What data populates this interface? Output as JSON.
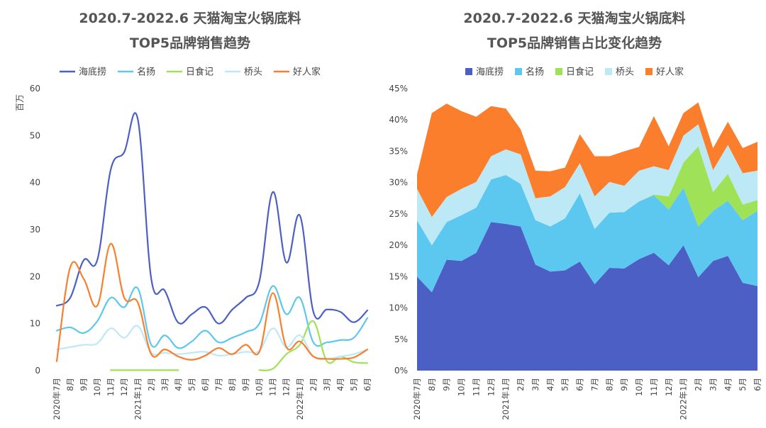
{
  "chart_data": [
    {
      "type": "line",
      "title_line1": "2020.7-2022.6 天猫淘宝火锅底料",
      "title_line2": "TOP5品牌销售趋势",
      "ylabel": "百万",
      "xlabel": "",
      "ylim": [
        0,
        60
      ],
      "yticks": [
        "0",
        "10",
        "20",
        "30",
        "40",
        "50",
        "60"
      ],
      "yticks_values": [
        0,
        10,
        20,
        30,
        40,
        50,
        60
      ],
      "legend_position": "top",
      "grid": false,
      "categories": [
        "2020年7月",
        "8月",
        "9月",
        "10月",
        "11月",
        "12月",
        "2021年1月",
        "2月",
        "3月",
        "4月",
        "5月",
        "6月",
        "7月",
        "8月",
        "9月",
        "10月",
        "11月",
        "12月",
        "2022年1月",
        "2月",
        "3月",
        "4月",
        "5月",
        "6月"
      ],
      "series": [
        {
          "name": "海底捞",
          "color": "#4c5fc4",
          "values": [
            13.8,
            15.5,
            23.5,
            23.5,
            42.8,
            46.5,
            53.5,
            19.5,
            17.0,
            10.2,
            12.0,
            13.5,
            10.0,
            13.0,
            15.5,
            19.0,
            38.0,
            23.0,
            33.0,
            12.5,
            13.0,
            12.5,
            10.3,
            12.8
          ]
        },
        {
          "name": "名扬",
          "color": "#5cc8ef",
          "values": [
            8.5,
            9.2,
            8.0,
            10.5,
            15.5,
            13.5,
            17.5,
            5.5,
            7.5,
            4.8,
            6.2,
            8.5,
            6.0,
            7.0,
            8.2,
            10.0,
            18.0,
            12.0,
            15.5,
            6.0,
            6.0,
            6.5,
            7.0,
            11.2
          ]
        },
        {
          "name": "日食记",
          "color": "#9fe257",
          "values": [
            null,
            null,
            null,
            null,
            0.1,
            0.1,
            0.1,
            0.1,
            0.1,
            0.1,
            null,
            null,
            null,
            null,
            null,
            0.1,
            0.4,
            3.5,
            5.5,
            10.5,
            2.0,
            3.0,
            1.8,
            1.6
          ]
        },
        {
          "name": "桥头",
          "color": "#bde9f6",
          "values": [
            4.5,
            5.0,
            5.5,
            5.8,
            9.0,
            7.0,
            9.5,
            3.8,
            3.8,
            3.5,
            3.8,
            4.0,
            3.2,
            3.5,
            4.0,
            4.2,
            9.0,
            5.0,
            7.5,
            3.0,
            2.5,
            3.0,
            3.5,
            4.5
          ]
        },
        {
          "name": "好人家",
          "color": "#fb7e2c",
          "values": [
            2.0,
            22.0,
            19.5,
            13.8,
            27.0,
            15.5,
            14.5,
            3.5,
            4.5,
            3.0,
            2.3,
            3.2,
            4.8,
            3.5,
            5.5,
            4.0,
            16.5,
            5.0,
            6.2,
            3.0,
            2.5,
            2.5,
            2.8,
            4.5
          ]
        }
      ]
    },
    {
      "type": "area",
      "stacked": true,
      "title_line1": "2020.7-2022.6 天猫淘宝火锅底料",
      "title_line2": "TOP5品牌销售占比变化趋势",
      "ylabel": "",
      "xlabel": "",
      "ylim": [
        0,
        45
      ],
      "yticks": [
        "0%",
        "5%",
        "10%",
        "15%",
        "20%",
        "25%",
        "30%",
        "35%",
        "40%",
        "45%"
      ],
      "yticks_values": [
        0,
        5,
        10,
        15,
        20,
        25,
        30,
        35,
        40,
        45
      ],
      "legend_position": "top",
      "grid": false,
      "categories": [
        "2020年7月",
        "8月",
        "9月",
        "10月",
        "11月",
        "12月",
        "2021年1月",
        "2月",
        "3月",
        "4月",
        "5月",
        "6月",
        "7月",
        "8月",
        "9月",
        "10月",
        "11月",
        "12月",
        "2022年1月",
        "2月",
        "3月",
        "4月",
        "5月",
        "6月"
      ],
      "series": [
        {
          "name": "海底捞",
          "color": "#4c5fc4",
          "values": [
            15.0,
            12.5,
            17.7,
            17.5,
            18.8,
            23.7,
            23.4,
            23.0,
            16.9,
            15.8,
            16.0,
            17.4,
            13.8,
            16.4,
            16.3,
            17.8,
            18.8,
            16.8,
            20.0,
            14.9,
            17.5,
            18.3,
            14.0,
            13.5
          ]
        },
        {
          "name": "名扬",
          "color": "#5cc8ef",
          "values": [
            9.0,
            7.5,
            6.0,
            7.3,
            7.2,
            6.8,
            7.8,
            6.8,
            7.1,
            7.2,
            8.3,
            10.9,
            8.8,
            8.8,
            9.0,
            9.2,
            9.2,
            8.9,
            9.2,
            8.1,
            8.0,
            8.8,
            10.0,
            12.0
          ]
        },
        {
          "name": "日食记",
          "color": "#9fe257",
          "values": [
            0,
            0,
            0,
            0,
            0,
            0,
            0,
            0,
            0,
            0,
            0,
            0,
            0,
            0,
            0,
            0,
            0.1,
            2.1,
            4.0,
            12.8,
            3.0,
            4.3,
            2.5,
            1.7
          ]
        },
        {
          "name": "桥头",
          "color": "#bde9f6",
          "values": [
            5.0,
            4.5,
            4.0,
            4.2,
            4.1,
            3.7,
            4.1,
            4.7,
            3.5,
            4.8,
            5.0,
            4.8,
            5.2,
            4.9,
            4.2,
            4.9,
            4.5,
            4.2,
            4.3,
            3.5,
            3.5,
            4.6,
            5.0,
            4.7
          ]
        },
        {
          "name": "好人家",
          "color": "#fb7e2c",
          "values": [
            2.3,
            16.6,
            14.9,
            12.4,
            10.4,
            8.0,
            6.5,
            4.0,
            4.4,
            4.0,
            3.1,
            4.6,
            6.4,
            4.1,
            5.5,
            3.8,
            8.0,
            3.8,
            3.6,
            3.5,
            3.5,
            3.7,
            4.0,
            4.6
          ]
        }
      ]
    }
  ]
}
